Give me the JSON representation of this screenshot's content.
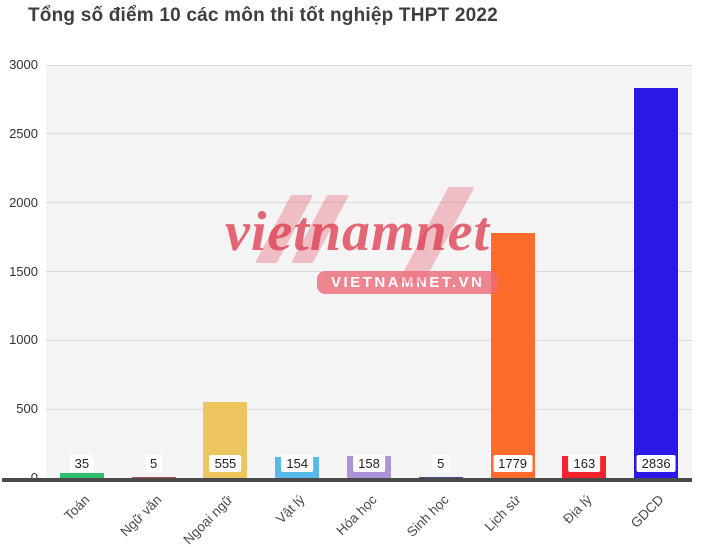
{
  "title": "Tổng số điểm 10 các môn thi tốt nghiệp THPT 2022",
  "watermark": {
    "brand": "vietnamnet",
    "site": "VIETNAMNET.VN",
    "color": "#e63c50"
  },
  "chart_data": {
    "type": "bar",
    "title": "Tổng số điểm 10 các môn thi tốt nghiệp THPT 2022",
    "categories": [
      "Toán",
      "Ngữ văn",
      "Ngoại ngữ",
      "Vật lý",
      "Hóa học",
      "Sinh học",
      "Lịch sử",
      "Địa lý",
      "GDCD"
    ],
    "values": [
      35,
      5,
      555,
      154,
      158,
      5,
      1779,
      163,
      2836
    ],
    "bar_colors": [
      "#2fbe6e",
      "#b9504f",
      "#ecc55e",
      "#58b8e8",
      "#ab93d6",
      "#3f4e8c",
      "#ff6b2b",
      "#f5232e",
      "#2a19e6"
    ],
    "xlabel": "",
    "ylabel": "",
    "ylim": [
      0,
      3000
    ],
    "yticks": [
      0,
      500,
      1000,
      1500,
      2000,
      2500,
      3000
    ],
    "grid": true,
    "legend": false
  }
}
